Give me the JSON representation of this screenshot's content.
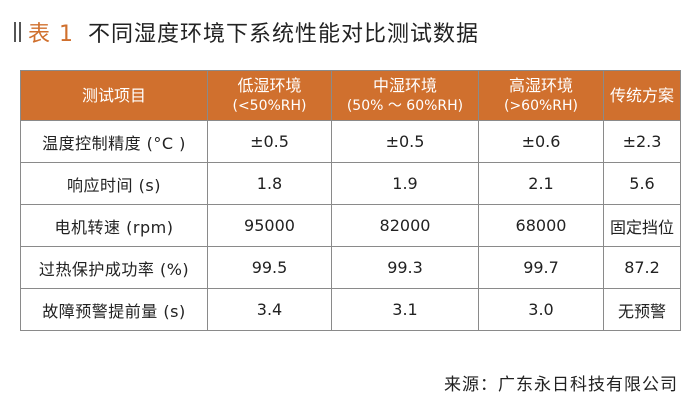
{
  "title": {
    "label": "表 1",
    "text": "不同湿度环境下系统性能对比测试数据"
  },
  "table": {
    "headers": [
      {
        "line1": "测试项目",
        "line2": ""
      },
      {
        "line1": "低湿环境",
        "line2": "(<50%RH)"
      },
      {
        "line1": "中湿环境",
        "line2": "(50% ～ 60%RH)"
      },
      {
        "line1": "高湿环境",
        "line2": "(>60%RH)"
      },
      {
        "line1": "传统方案",
        "line2": ""
      }
    ],
    "rows": [
      [
        "温度控制精度 (°C )",
        "±0.5",
        "±0.5",
        "±0.6",
        "±2.3"
      ],
      [
        "响应时间 (s)",
        "1.8",
        "1.9",
        "2.1",
        "5.6"
      ],
      [
        "电机转速 (rpm)",
        "95000",
        "82000",
        "68000",
        "固定挡位"
      ],
      [
        "过热保护成功率 (%)",
        "99.5",
        "99.3",
        "99.7",
        "87.2"
      ],
      [
        "故障预警提前量 (s)",
        "3.4",
        "3.1",
        "3.0",
        "无预警"
      ]
    ]
  },
  "source": "来源：广东永日科技有限公司",
  "colors": {
    "accent": "#d0702e",
    "border": "#8a8a8a"
  }
}
